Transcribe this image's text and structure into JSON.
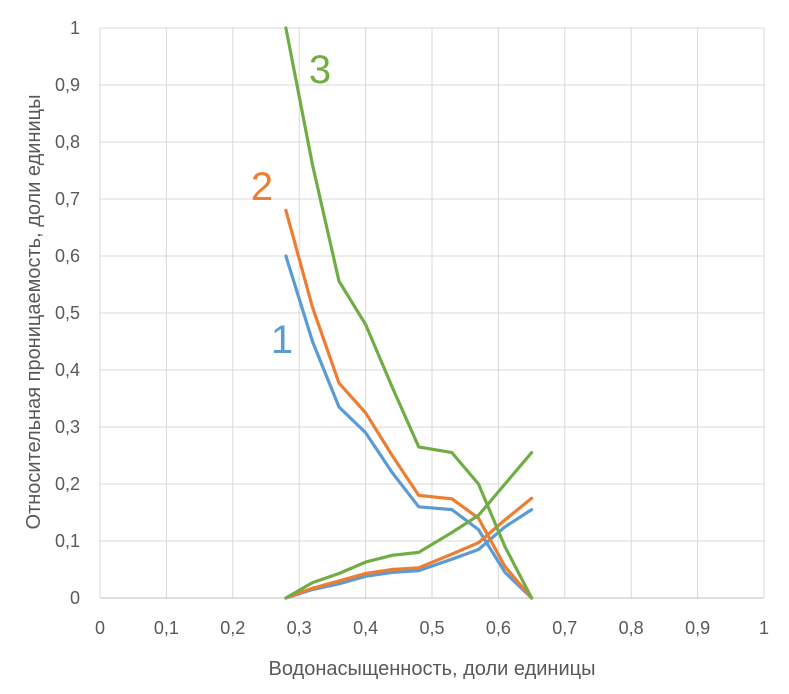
{
  "chart_data": {
    "type": "line",
    "xlabel": "Водонасыщенность, доли единицы",
    "ylabel": "Относительная проницаемость, доли единицы",
    "xlim": [
      0,
      1
    ],
    "ylim": [
      0,
      1
    ],
    "x_ticks": [
      "0",
      "0,1",
      "0,2",
      "0,3",
      "0,4",
      "0,5",
      "0,6",
      "0,7",
      "0,8",
      "0,9",
      "1"
    ],
    "y_ticks": [
      "0",
      "0,1",
      "0,2",
      "0,3",
      "0,4",
      "0,5",
      "0,6",
      "0,7",
      "0,8",
      "0,9",
      "1"
    ],
    "grid": true,
    "legend": "none",
    "series": [
      {
        "name": "1",
        "color": "#5b9bd5",
        "curves": [
          {
            "x": [
              0.28,
              0.32,
              0.36,
              0.4,
              0.44,
              0.48,
              0.53,
              0.57,
              0.61,
              0.65
            ],
            "y": [
              0.6,
              0.45,
              0.335,
              0.29,
              0.22,
              0.16,
              0.155,
              0.12,
              0.045,
              0.0
            ]
          },
          {
            "x": [
              0.28,
              0.32,
              0.36,
              0.4,
              0.44,
              0.48,
              0.53,
              0.57,
              0.61,
              0.65
            ],
            "y": [
              0.0,
              0.015,
              0.025,
              0.038,
              0.045,
              0.048,
              0.068,
              0.085,
              0.125,
              0.155
            ]
          }
        ]
      },
      {
        "name": "2",
        "color": "#ed7d31",
        "curves": [
          {
            "x": [
              0.28,
              0.32,
              0.36,
              0.4,
              0.44,
              0.48,
              0.53,
              0.57,
              0.61,
              0.65
            ],
            "y": [
              0.68,
              0.51,
              0.377,
              0.325,
              0.25,
              0.18,
              0.174,
              0.14,
              0.055,
              0.0
            ]
          },
          {
            "x": [
              0.28,
              0.32,
              0.36,
              0.4,
              0.44,
              0.48,
              0.53,
              0.57,
              0.61,
              0.65
            ],
            "y": [
              0.0,
              0.017,
              0.03,
              0.043,
              0.05,
              0.053,
              0.077,
              0.097,
              0.137,
              0.175
            ]
          }
        ]
      },
      {
        "name": "3",
        "color": "#70ad47",
        "curves": [
          {
            "x": [
              0.28,
              0.32,
              0.36,
              0.4,
              0.44,
              0.48,
              0.53,
              0.57,
              0.61,
              0.65
            ],
            "y": [
              1.0,
              0.76,
              0.556,
              0.48,
              0.37,
              0.265,
              0.255,
              0.2,
              0.09,
              0.0
            ]
          },
          {
            "x": [
              0.28,
              0.32,
              0.36,
              0.4,
              0.44,
              0.48,
              0.53,
              0.57,
              0.61,
              0.65
            ],
            "y": [
              0.0,
              0.027,
              0.043,
              0.063,
              0.075,
              0.08,
              0.115,
              0.145,
              0.2,
              0.255
            ]
          }
        ]
      }
    ]
  }
}
